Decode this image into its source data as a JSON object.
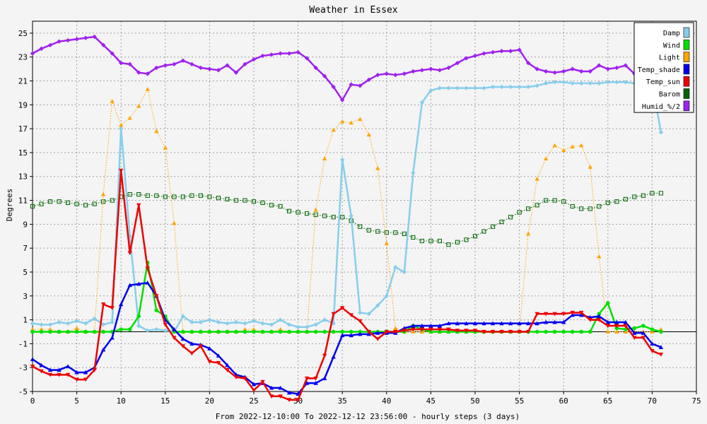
{
  "chart_data": {
    "type": "line",
    "title": "Weather in Essex",
    "xlabel": "From 2022-12-10:00 To 2022-12-12 23:56:00 - hourly steps (3 days)",
    "ylabel": "Degrees",
    "xlim": [
      0,
      75
    ],
    "ylim": [
      -5,
      26
    ],
    "x_ticks": [
      0,
      5,
      10,
      15,
      20,
      25,
      30,
      35,
      40,
      45,
      50,
      55,
      60,
      65,
      70,
      75
    ],
    "y_ticks": [
      -5,
      -3,
      -1,
      1,
      3,
      5,
      7,
      9,
      11,
      13,
      15,
      17,
      19,
      21,
      23,
      25
    ],
    "grid": true,
    "zero_line": true,
    "legend_position": "top-right",
    "series": [
      {
        "name": "Damp",
        "color": "#87ceeb",
        "marker": "diamond",
        "dotted": false,
        "values": [
          0.7,
          0.6,
          0.6,
          0.8,
          0.7,
          0.9,
          0.7,
          1.1,
          0.6,
          0.8,
          17,
          8,
          0.5,
          0.1,
          0.2,
          0.1,
          0,
          1.3,
          0.8,
          0.8,
          1,
          0.8,
          0.7,
          0.8,
          0.7,
          0.9,
          0.7,
          0.6,
          1,
          0.6,
          0.4,
          0.4,
          0.6,
          1,
          0.7,
          14.4,
          9.7,
          1.6,
          1.5,
          2.2,
          3,
          5.4,
          5,
          13.3,
          19.2,
          20.2,
          20.4,
          20.4,
          20.4,
          20.4,
          20.4,
          20.4,
          20.5,
          20.5,
          20.5,
          20.5,
          20.5,
          20.6,
          20.8,
          20.9,
          20.9,
          20.8,
          20.8,
          20.8,
          20.8,
          20.9,
          20.9,
          20.9,
          20.8,
          20.8,
          20.8,
          16.7
        ]
      },
      {
        "name": "Wind",
        "color": "#00e000",
        "marker": "circle",
        "dotted": false,
        "values": [
          0,
          0,
          0,
          0,
          0,
          0,
          0,
          0,
          0,
          0,
          0.2,
          0.2,
          1.3,
          5.8,
          1.8,
          1.3,
          0,
          0,
          0,
          0,
          0,
          0,
          0,
          0,
          0,
          0,
          0,
          0,
          0,
          0,
          0,
          0,
          0,
          0,
          0,
          0,
          0,
          0,
          0,
          0,
          0,
          0,
          0,
          0.5,
          0.2,
          0,
          0,
          0,
          0,
          0,
          0,
          0,
          0,
          0,
          0,
          0,
          0,
          0,
          0,
          0,
          0,
          0,
          0,
          0,
          1.5,
          2.4,
          0.3,
          0.2,
          0.3,
          0.5,
          0.2,
          0
        ]
      },
      {
        "name": "Light",
        "color": "#ffa500",
        "marker": "triangle-up",
        "dotted": true,
        "values": [
          0.2,
          0.2,
          0.2,
          0,
          0,
          0.3,
          0,
          0,
          11.5,
          19.3,
          17.3,
          17.9,
          18.9,
          20.3,
          16.8,
          15.4,
          9.1,
          0,
          0,
          0,
          0,
          0,
          0,
          0,
          0.2,
          0.2,
          0,
          0,
          0.2,
          0,
          0,
          0,
          10.2,
          14.5,
          16.9,
          17.6,
          17.5,
          17.8,
          16.5,
          13.7,
          7.4,
          0.3,
          0,
          0,
          0,
          0,
          0,
          0,
          0,
          0,
          0,
          0,
          0,
          0,
          0,
          0,
          8.2,
          12.8,
          14.5,
          15.6,
          15.2,
          15.5,
          15.6,
          13.8,
          6.3,
          0,
          0,
          0,
          0,
          0,
          0,
          0.2
        ]
      },
      {
        "name": "Temp_shade",
        "color": "#0000ee",
        "marker": "triangle-up",
        "dotted": false,
        "values": [
          -2.3,
          -2.8,
          -3.2,
          -3.2,
          -2.9,
          -3.4,
          -3.4,
          -3,
          -1.5,
          -0.5,
          2.3,
          3.9,
          4,
          4.1,
          3,
          1,
          0.2,
          -0.6,
          -1,
          -1.1,
          -1.4,
          -2,
          -2.8,
          -3.6,
          -3.8,
          -4.4,
          -4.3,
          -4.7,
          -4.7,
          -5.1,
          -5.2,
          -4.3,
          -4.3,
          -3.9,
          -2.1,
          -0.3,
          -0.3,
          -0.2,
          -0.2,
          -0.1,
          -0.1,
          -0.1,
          0.3,
          0.5,
          0.5,
          0.5,
          0.5,
          0.7,
          0.7,
          0.7,
          0.7,
          0.7,
          0.7,
          0.7,
          0.7,
          0.7,
          0.7,
          0.7,
          0.8,
          0.8,
          0.8,
          1.4,
          1.4,
          1.2,
          1.3,
          0.8,
          0.8,
          0.8,
          -0.1,
          -0.1,
          -1,
          -1.3
        ]
      },
      {
        "name": "Temp_sun",
        "color": "#ee0000",
        "marker": "triangle-down",
        "dotted": false,
        "values": [
          -2.9,
          -3.3,
          -3.6,
          -3.6,
          -3.6,
          -4,
          -4,
          -3.2,
          2.3,
          2,
          13.5,
          6.6,
          10.6,
          5.3,
          3,
          0.6,
          -0.5,
          -1.2,
          -1.8,
          -1.2,
          -2.5,
          -2.6,
          -3.2,
          -3.8,
          -3.9,
          -4.9,
          -4.2,
          -5.4,
          -5.4,
          -5.7,
          -5.7,
          -3.9,
          -3.9,
          -2,
          1.5,
          2,
          1.4,
          0.9,
          0,
          -0.6,
          0,
          0,
          0.1,
          0.2,
          0.2,
          0.2,
          0.2,
          0.2,
          0.1,
          0.1,
          0.1,
          0,
          0,
          0,
          0,
          0,
          0,
          1.5,
          1.5,
          1.5,
          1.5,
          1.6,
          1.6,
          1,
          1,
          0.5,
          0.5,
          0.5,
          -0.5,
          -0.5,
          -1.6,
          -1.9
        ]
      },
      {
        "name": "Barom",
        "color": "#006400",
        "marker": "square-open",
        "dotted": true,
        "values": [
          10.5,
          10.7,
          10.9,
          10.9,
          10.8,
          10.7,
          10.6,
          10.7,
          10.9,
          11,
          11.3,
          11.5,
          11.5,
          11.4,
          11.4,
          11.3,
          11.3,
          11.3,
          11.4,
          11.4,
          11.3,
          11.2,
          11.1,
          11,
          11,
          10.9,
          10.8,
          10.6,
          10.5,
          10.1,
          10,
          9.9,
          9.8,
          9.7,
          9.6,
          9.6,
          9.3,
          8.8,
          8.5,
          8.4,
          8.3,
          8.3,
          8.2,
          7.9,
          7.6,
          7.6,
          7.6,
          7.3,
          7.5,
          7.7,
          8,
          8.4,
          8.8,
          9.2,
          9.6,
          10,
          10.3,
          10.6,
          11,
          11,
          10.9,
          10.5,
          10.3,
          10.3,
          10.5,
          10.8,
          10.9,
          11.1,
          11.3,
          11.4,
          11.6,
          11.6
        ]
      },
      {
        "name": "Humid_%/2",
        "color": "#a020f0",
        "marker": "diamond",
        "dotted": false,
        "values": [
          23.3,
          23.7,
          24,
          24.3,
          24.4,
          24.5,
          24.6,
          24.7,
          24,
          23.3,
          22.5,
          22.4,
          21.7,
          21.6,
          22.1,
          22.3,
          22.4,
          22.7,
          22.4,
          22.1,
          22,
          21.9,
          22.3,
          21.7,
          22.4,
          22.8,
          23.1,
          23.2,
          23.3,
          23.3,
          23.4,
          22.9,
          22.1,
          21.4,
          20.5,
          19.4,
          20.7,
          20.6,
          21.1,
          21.5,
          21.6,
          21.5,
          21.6,
          21.8,
          21.9,
          22,
          21.9,
          22.1,
          22.5,
          22.9,
          23.1,
          23.3,
          23.4,
          23.5,
          23.5,
          23.6,
          22.5,
          22,
          21.8,
          21.7,
          21.8,
          22,
          21.8,
          21.8,
          22.3,
          22,
          22.1,
          22.3,
          21.6,
          20.9,
          20.2,
          19.5
        ]
      }
    ]
  }
}
